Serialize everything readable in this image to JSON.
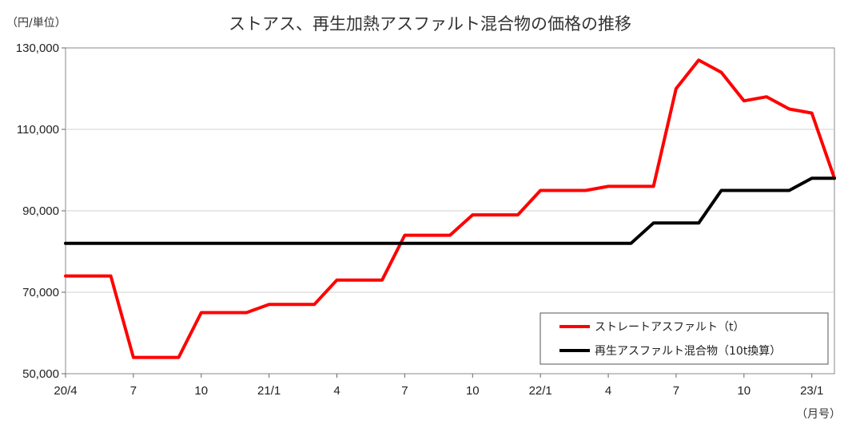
{
  "chart_data": {
    "type": "line",
    "title": "ストアス、再生加熱アスファルト混合物の価格の推移",
    "ylabel": "（円/単位）",
    "xlabel": "（月号）",
    "ylim": [
      50000,
      130000
    ],
    "yticks": [
      "50,000",
      "70,000",
      "90,000",
      "110,000",
      "130,000"
    ],
    "ytick_values": [
      50000,
      70000,
      90000,
      110000,
      130000
    ],
    "xtick_labels": [
      "20/4",
      "7",
      "10",
      "21/1",
      "4",
      "7",
      "10",
      "22/1",
      "4",
      "7",
      "10",
      "23/1"
    ],
    "xtick_months": [
      0,
      3,
      6,
      9,
      12,
      15,
      18,
      21,
      24,
      27,
      30,
      33
    ],
    "x_months": [
      "2020-04",
      "2020-05",
      "2020-06",
      "2020-07",
      "2020-08",
      "2020-09",
      "2020-10",
      "2020-11",
      "2020-12",
      "2021-01",
      "2021-02",
      "2021-03",
      "2021-04",
      "2021-05",
      "2021-06",
      "2021-07",
      "2021-08",
      "2021-09",
      "2021-10",
      "2021-11",
      "2021-12",
      "2022-01",
      "2022-02",
      "2022-03",
      "2022-04",
      "2022-05",
      "2022-06",
      "2022-07",
      "2022-08",
      "2022-09",
      "2022-10",
      "2022-11",
      "2022-12",
      "2023-01",
      "2023-02"
    ],
    "grid": true,
    "legend_position": "bottom-right",
    "series": [
      {
        "name": "ストレートアスファルト（t）",
        "color": "#ff0000",
        "values": [
          74000,
          74000,
          74000,
          54000,
          54000,
          54000,
          65000,
          65000,
          65000,
          67000,
          67000,
          67000,
          73000,
          73000,
          73000,
          84000,
          84000,
          84000,
          89000,
          89000,
          89000,
          95000,
          95000,
          95000,
          96000,
          96000,
          96000,
          120000,
          127000,
          124000,
          117000,
          118000,
          115000,
          114000,
          98000
        ]
      },
      {
        "name": "再生アスファルト混合物（10t換算）",
        "color": "#000000",
        "values": [
          82000,
          82000,
          82000,
          82000,
          82000,
          82000,
          82000,
          82000,
          82000,
          82000,
          82000,
          82000,
          82000,
          82000,
          82000,
          82000,
          82000,
          82000,
          82000,
          82000,
          82000,
          82000,
          82000,
          82000,
          82000,
          82000,
          87000,
          87000,
          87000,
          95000,
          95000,
          95000,
          95000,
          98000,
          98000
        ]
      }
    ]
  }
}
